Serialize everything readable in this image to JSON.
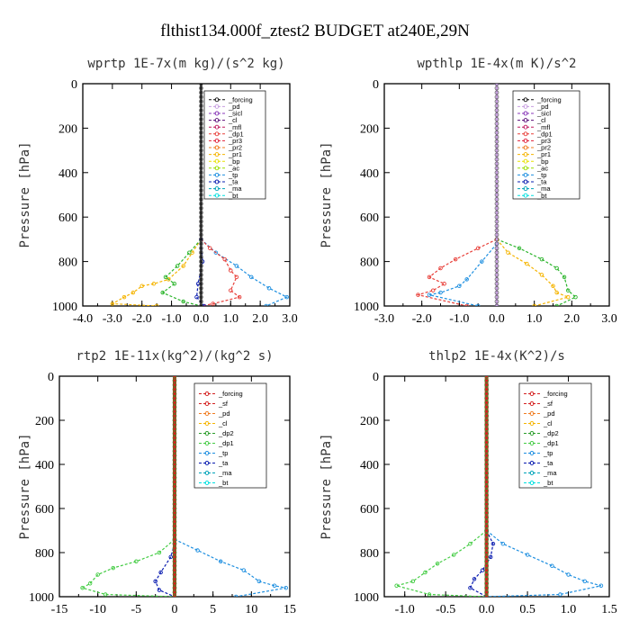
{
  "suptitle": "flthist134.000f_ztest2  BUDGET at240E,29N",
  "colors": {
    "forcing": "#111111",
    "pd": "#c79fe0",
    "sicl": "#8a3ab9",
    "cl": "#5b0f7a",
    "mfl": "#c0185f",
    "dp1": "#e8403a",
    "pr3": "#e0203a",
    "pr2": "#f07c20",
    "pr1": "#f5b400",
    "bp": "#e8e000",
    "ac": "#9ade00",
    "tp": "#1e8fe0",
    "ta": "#0a1cb0",
    "ma": "#00a3b8",
    "bt": "#00e0e0",
    "sf": "#d42020",
    "dp2": "#2a9d2a",
    "dp1b": "#44cc44",
    "bp_wp": "#2db52d",
    "ac_wp": "#aadd00"
  },
  "chart_data": [
    {
      "type": "line",
      "title": "wprtp  1E-7x(m kg)/(s^2 kg)",
      "ylabel": "Pressure [hPa]",
      "xlim": [
        -4,
        3
      ],
      "ylim": [
        1000,
        0
      ],
      "xticks": [
        -4,
        -3,
        -2,
        -1,
        0,
        1,
        2,
        3
      ],
      "xtick_labels": [
        "-4.0",
        "-3.0",
        "-2.0",
        "-1.0",
        "0.0",
        "1.0",
        "2.0",
        "3.0"
      ],
      "yticks": [
        0,
        200,
        400,
        600,
        800,
        1000
      ],
      "legend_entries": [
        "_forcing",
        "_pd",
        "_sicl",
        "_cl",
        "_mfl",
        "_dp1",
        "_pr3",
        "_pr2",
        "_pr1",
        "_bp",
        "_ac",
        "_tp",
        "_ta",
        "_ma",
        "_bt"
      ],
      "legend_placement": "top-right",
      "series": [
        {
          "name": "_ac",
          "color": "#f5b400",
          "points": [
            [
              0,
              700
            ],
            [
              -0.3,
              760
            ],
            [
              -0.6,
              820
            ],
            [
              -1.1,
              880
            ],
            [
              -1.6,
              900
            ],
            [
              -2.0,
              910
            ],
            [
              -2.3,
              940
            ],
            [
              -2.6,
              960
            ],
            [
              -3.0,
              990
            ],
            [
              -1.5,
              1000
            ]
          ]
        },
        {
          "name": "_bp",
          "color": "#2db52d",
          "points": [
            [
              0,
              700
            ],
            [
              -0.4,
              760
            ],
            [
              -0.8,
              820
            ],
            [
              -1.2,
              870
            ],
            [
              -0.9,
              900
            ],
            [
              -1.3,
              940
            ],
            [
              -0.6,
              980
            ],
            [
              0,
              1000
            ]
          ]
        },
        {
          "name": "_tp",
          "color": "#1e8fe0",
          "points": [
            [
              0,
              700
            ],
            [
              0.5,
              760
            ],
            [
              1.2,
              820
            ],
            [
              1.7,
              870
            ],
            [
              2.3,
              920
            ],
            [
              2.9,
              960
            ],
            [
              2.2,
              1000
            ]
          ]
        },
        {
          "name": "_dp1",
          "color": "#e8403a",
          "points": [
            [
              0,
              700
            ],
            [
              0.3,
              740
            ],
            [
              0.8,
              790
            ],
            [
              1.0,
              840
            ],
            [
              1.2,
              870
            ],
            [
              1.0,
              930
            ],
            [
              1.3,
              960
            ],
            [
              0.4,
              990
            ],
            [
              0,
              1000
            ]
          ]
        },
        {
          "name": "_ta",
          "color": "#0a1cb0",
          "points": [
            [
              0,
              700
            ],
            [
              0.05,
              800
            ],
            [
              -0.1,
              900
            ],
            [
              -0.15,
              960
            ],
            [
              0.1,
              1000
            ]
          ]
        },
        {
          "name": "_forcing",
          "color": "#111111",
          "points": [
            [
              0,
              0
            ],
            [
              0,
              1000
            ]
          ]
        }
      ]
    },
    {
      "type": "line",
      "title": "wpthlp  1E-4x(m K)/s^2",
      "ylabel": "Pressure [hPa]",
      "xlim": [
        -3,
        3
      ],
      "ylim": [
        1000,
        0
      ],
      "xticks": [
        -3,
        -2,
        -1,
        0,
        1,
        2,
        3
      ],
      "xtick_labels": [
        "-3.0",
        "-2.0",
        "-1.0",
        "0.0",
        "1.0",
        "2.0",
        "3.0"
      ],
      "yticks": [
        0,
        200,
        400,
        600,
        800,
        1000
      ],
      "legend_entries": [
        "_forcing",
        "_pd",
        "_sicl",
        "_cl",
        "_mfl",
        "_dp1",
        "_pr3",
        "_pr2",
        "_pr1",
        "_bp",
        "_ac",
        "_tp",
        "_ta",
        "_ma",
        "_bt"
      ],
      "legend_placement": "top-right",
      "series": [
        {
          "name": "_bp",
          "color": "#2db52d",
          "points": [
            [
              0,
              700
            ],
            [
              0.6,
              740
            ],
            [
              1.2,
              790
            ],
            [
              1.6,
              830
            ],
            [
              1.8,
              870
            ],
            [
              1.9,
              930
            ],
            [
              2.1,
              960
            ],
            [
              1.6,
              1000
            ]
          ]
        },
        {
          "name": "_pr1",
          "color": "#f5b400",
          "points": [
            [
              0,
              700
            ],
            [
              0.3,
              760
            ],
            [
              0.8,
              810
            ],
            [
              1.2,
              860
            ],
            [
              1.5,
              910
            ],
            [
              1.6,
              940
            ],
            [
              1.9,
              960
            ],
            [
              1.0,
              1000
            ]
          ]
        },
        {
          "name": "_dp1",
          "color": "#e8403a",
          "points": [
            [
              0,
              700
            ],
            [
              -0.5,
              740
            ],
            [
              -1.1,
              790
            ],
            [
              -1.5,
              830
            ],
            [
              -1.8,
              870
            ],
            [
              -1.4,
              900
            ],
            [
              -1.7,
              930
            ],
            [
              -2.1,
              950
            ],
            [
              -0.8,
              1000
            ]
          ]
        },
        {
          "name": "_tp",
          "color": "#1e8fe0",
          "points": [
            [
              0,
              720
            ],
            [
              -0.4,
              800
            ],
            [
              -0.8,
              880
            ],
            [
              -1.0,
              910
            ],
            [
              -1.5,
              940
            ],
            [
              -1.8,
              950
            ],
            [
              -0.5,
              1000
            ]
          ]
        },
        {
          "name": "_ta",
          "color": "#0a1cb0",
          "points": [
            [
              0,
              0
            ],
            [
              0,
              1000
            ]
          ]
        },
        {
          "name": "_forcing",
          "color": "#c79fe0",
          "points": [
            [
              0,
              0
            ],
            [
              0,
              1000
            ]
          ]
        }
      ]
    },
    {
      "type": "line",
      "title": "rtp2  1E-11x(kg^2)/(kg^2 s)",
      "ylabel": "Pressure [hPa]",
      "xlim": [
        -15,
        15
      ],
      "ylim": [
        1000,
        0
      ],
      "xticks": [
        -15,
        -10,
        -5,
        0,
        5,
        10,
        15
      ],
      "xtick_labels": [
        "-15",
        "-10",
        "-5",
        "0",
        "5",
        "10",
        "15"
      ],
      "yticks": [
        0,
        200,
        400,
        600,
        800,
        1000
      ],
      "legend_entries": [
        "_forcing",
        "_sf",
        "_pd",
        "_cl",
        "_dp2",
        "_dp1",
        "_tp",
        "_ta",
        "_ma",
        "_bt"
      ],
      "legend_placement": "top-right",
      "series": [
        {
          "name": "_dp1",
          "color": "#44cc44",
          "points": [
            [
              0,
              740
            ],
            [
              -2,
              800
            ],
            [
              -5,
              840
            ],
            [
              -8,
              870
            ],
            [
              -10,
              900
            ],
            [
              -11,
              940
            ],
            [
              -12,
              960
            ],
            [
              -9,
              990
            ],
            [
              0,
              1000
            ]
          ]
        },
        {
          "name": "_tp",
          "color": "#1e8fe0",
          "points": [
            [
              0,
              740
            ],
            [
              3,
              790
            ],
            [
              6,
              840
            ],
            [
              9,
              880
            ],
            [
              11,
              930
            ],
            [
              13,
              950
            ],
            [
              14.5,
              960
            ],
            [
              8,
              1000
            ]
          ]
        },
        {
          "name": "_ta",
          "color": "#0a1cb0",
          "points": [
            [
              0,
              760
            ],
            [
              -0.5,
              820
            ],
            [
              -1.8,
              890
            ],
            [
              -2.5,
              930
            ],
            [
              -2.0,
              970
            ],
            [
              0,
              1000
            ]
          ]
        },
        {
          "name": "_forcing",
          "color": "#d42020",
          "points": [
            [
              0,
              0
            ],
            [
              0,
              1000
            ]
          ]
        }
      ]
    },
    {
      "type": "line",
      "title": "thlp2  1E-4x(K^2)/s",
      "ylabel": "Pressure [hPa]",
      "xlim": [
        -1.25,
        1.5
      ],
      "ylim": [
        1000,
        0
      ],
      "xticks": [
        -1.0,
        -0.5,
        0.0,
        0.5,
        1.0,
        1.5
      ],
      "xtick_labels": [
        "-1.0",
        "-0.5",
        "0.0",
        "0.5",
        "1.0",
        "1.5"
      ],
      "yticks": [
        0,
        200,
        400,
        600,
        800,
        1000
      ],
      "legend_entries": [
        "_forcing",
        "_sf",
        "_pd",
        "_cl",
        "_dp2",
        "_dp1",
        "_tp",
        "_ta",
        "_ma",
        "_bt"
      ],
      "legend_placement": "top-right",
      "series": [
        {
          "name": "_dp1",
          "color": "#44cc44",
          "points": [
            [
              0,
              700
            ],
            [
              -0.2,
              760
            ],
            [
              -0.4,
              810
            ],
            [
              -0.6,
              850
            ],
            [
              -0.75,
              890
            ],
            [
              -0.9,
              930
            ],
            [
              -1.1,
              950
            ],
            [
              -0.7,
              990
            ],
            [
              0,
              1000
            ]
          ]
        },
        {
          "name": "_tp",
          "color": "#1e8fe0",
          "points": [
            [
              0,
              700
            ],
            [
              0.2,
              760
            ],
            [
              0.5,
              810
            ],
            [
              0.8,
              860
            ],
            [
              1.0,
              900
            ],
            [
              1.2,
              930
            ],
            [
              1.4,
              950
            ],
            [
              0.9,
              990
            ],
            [
              0,
              1000
            ]
          ]
        },
        {
          "name": "_ta",
          "color": "#0a1cb0",
          "points": [
            [
              0,
              700
            ],
            [
              0.08,
              760
            ],
            [
              0.05,
              820
            ],
            [
              -0.05,
              880
            ],
            [
              -0.15,
              920
            ],
            [
              -0.2,
              960
            ],
            [
              0,
              1000
            ]
          ]
        },
        {
          "name": "_forcing",
          "color": "#d42020",
          "points": [
            [
              0,
              0
            ],
            [
              0,
              1000
            ]
          ]
        }
      ]
    }
  ]
}
